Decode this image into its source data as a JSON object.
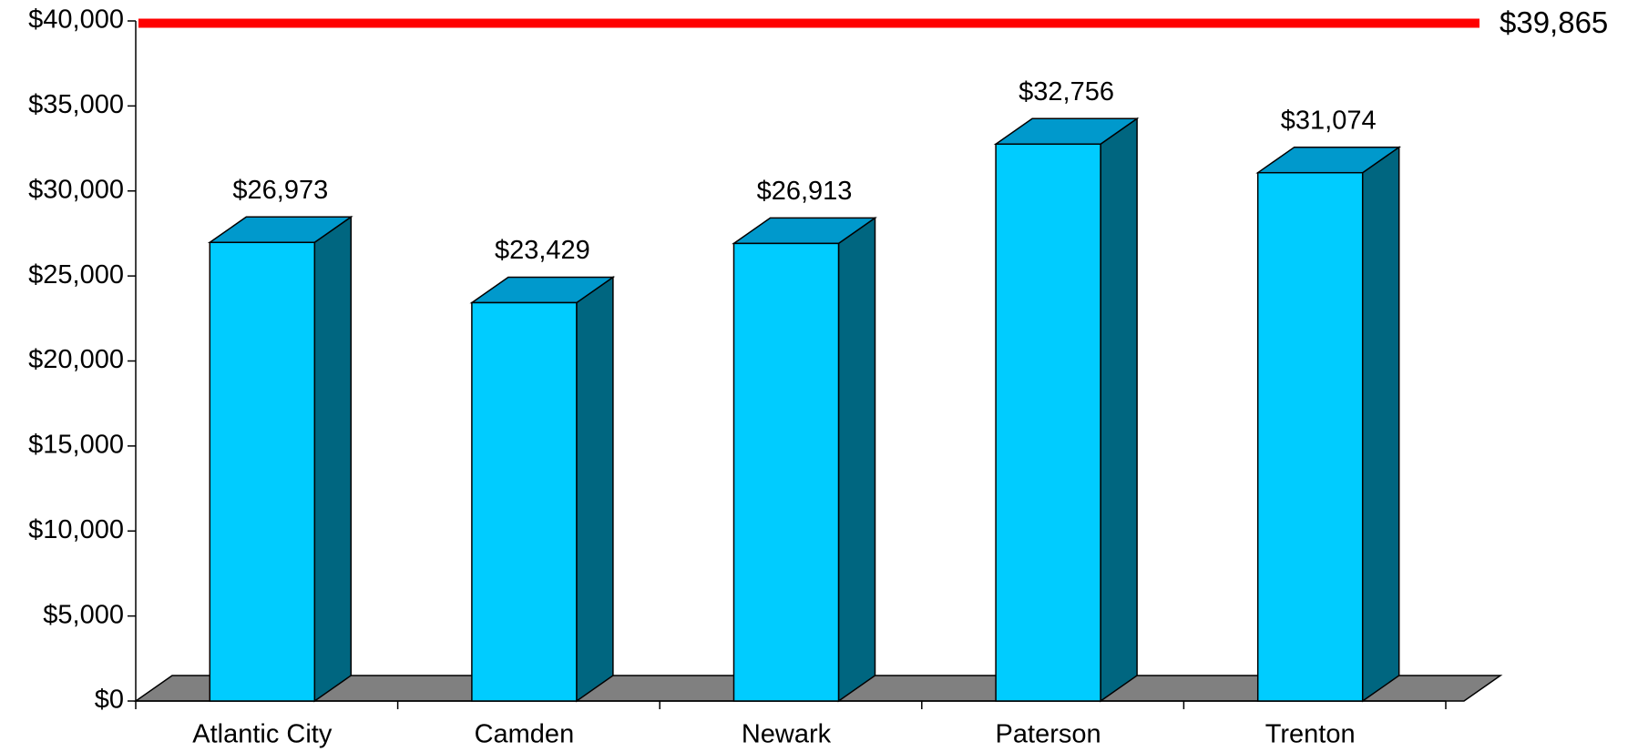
{
  "chart_data": {
    "type": "bar3d",
    "categories": [
      "Atlantic City",
      "Camden",
      "Newark",
      "Paterson",
      "Trenton"
    ],
    "values": [
      26973,
      23429,
      26913,
      32756,
      31074
    ],
    "value_labels": [
      "$26,973",
      "$23,429",
      "$26,913",
      "$32,756",
      "$31,074"
    ],
    "color": "#00ccff",
    "side_color": "#006680",
    "top_color": "#0099cc",
    "floor_color": "#808080",
    "ylim": [
      0,
      40000
    ],
    "yticks": [
      {
        "value": 0,
        "label": "$0"
      },
      {
        "value": 5000,
        "label": "$5,000"
      },
      {
        "value": 10000,
        "label": "$10,000"
      },
      {
        "value": 15000,
        "label": "$15,000"
      },
      {
        "value": 20000,
        "label": "$20,000"
      },
      {
        "value": 25000,
        "label": "$25,000"
      },
      {
        "value": 30000,
        "label": "$30,000"
      },
      {
        "value": 35000,
        "label": "$35,000"
      },
      {
        "value": 40000,
        "label": "$40,000"
      }
    ],
    "reference_line": {
      "value": 39865,
      "label": "$39,865",
      "color": "#ff0000"
    }
  }
}
